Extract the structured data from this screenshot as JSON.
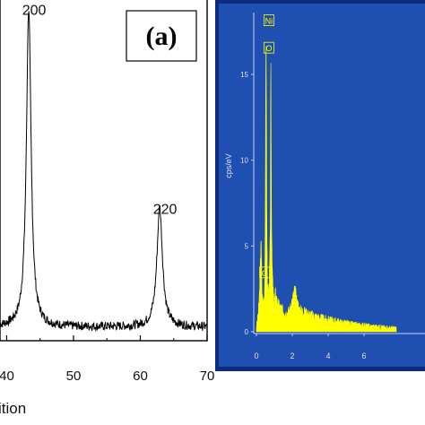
{
  "chart_data": [
    {
      "type": "line",
      "panel_label": "(a)",
      "xlabel": "ition",
      "ylabel": "",
      "xlim": [
        39,
        70
      ],
      "ylim": [
        0,
        100
      ],
      "x_ticks": [
        {
          "value": 50,
          "label": "50"
        },
        {
          "value": 60,
          "label": "60"
        },
        {
          "value": 70,
          "label": "70"
        }
      ],
      "x_tick_partial": {
        "value": 40,
        "label": "40"
      },
      "peaks": [
        {
          "x": 43.3,
          "label": "200",
          "height": 93
        },
        {
          "x": 62.9,
          "label": "220",
          "height": 35
        }
      ],
      "baseline": 4,
      "grid": false,
      "legend": "none"
    },
    {
      "type": "area",
      "ylabel": "cps/eV",
      "xlim": [
        -0.3,
        7.8
      ],
      "ylim": [
        -0.6,
        18.5
      ],
      "x_ticks": [
        {
          "value": 0,
          "label": "0"
        },
        {
          "value": 2,
          "label": "2"
        },
        {
          "value": 4,
          "label": "4"
        },
        {
          "value": 6,
          "label": "6"
        }
      ],
      "y_ticks": [
        {
          "value": 0,
          "label": "0"
        },
        {
          "value": 5,
          "label": "5"
        },
        {
          "value": 10,
          "label": "10"
        },
        {
          "value": 15,
          "label": "15"
        }
      ],
      "element_labels": [
        {
          "x": 0.52,
          "y": 18.0,
          "label": "Ni"
        },
        {
          "x": 0.52,
          "y": 16.4,
          "label": "O"
        },
        {
          "x": 0.28,
          "y": 3.3,
          "label": "C"
        }
      ],
      "spectrum": [
        [
          0.0,
          0.3
        ],
        [
          0.05,
          0.6
        ],
        [
          0.1,
          1.0
        ],
        [
          0.15,
          1.8
        ],
        [
          0.2,
          3.0
        ],
        [
          0.25,
          5.6
        ],
        [
          0.28,
          4.0
        ],
        [
          0.32,
          2.0
        ],
        [
          0.38,
          1.7
        ],
        [
          0.45,
          2.3
        ],
        [
          0.49,
          5.0
        ],
        [
          0.51,
          12.0
        ],
        [
          0.53,
          17.2
        ],
        [
          0.55,
          15.2
        ],
        [
          0.58,
          6.0
        ],
        [
          0.62,
          2.4
        ],
        [
          0.68,
          2.0
        ],
        [
          0.72,
          2.8
        ],
        [
          0.75,
          4.2
        ],
        [
          0.78,
          7.5
        ],
        [
          0.8,
          17.3
        ],
        [
          0.83,
          9.0
        ],
        [
          0.86,
          4.5
        ],
        [
          0.9,
          3.0
        ],
        [
          0.95,
          2.0
        ],
        [
          1.0,
          1.6
        ],
        [
          1.05,
          2.2
        ],
        [
          1.1,
          2.0
        ],
        [
          1.2,
          1.6
        ],
        [
          1.35,
          1.4
        ],
        [
          1.5,
          1.2
        ],
        [
          1.7,
          1.1
        ],
        [
          1.9,
          1.3
        ],
        [
          2.05,
          2.0
        ],
        [
          2.15,
          2.3
        ],
        [
          2.25,
          1.8
        ],
        [
          2.4,
          1.3
        ],
        [
          2.6,
          1.2
        ],
        [
          2.8,
          1.1
        ],
        [
          3.0,
          1.0
        ],
        [
          3.3,
          0.9
        ],
        [
          3.6,
          0.8
        ],
        [
          4.0,
          0.7
        ],
        [
          4.5,
          0.6
        ],
        [
          5.0,
          0.5
        ],
        [
          5.5,
          0.4
        ],
        [
          6.0,
          0.35
        ],
        [
          6.5,
          0.3
        ],
        [
          7.0,
          0.25
        ],
        [
          7.5,
          0.2
        ],
        [
          7.8,
          0.2
        ]
      ],
      "colors": {
        "background": "#1f4fb0",
        "spectrum": "#ffff00",
        "axis": "#c8d2ea",
        "frame": "#0c2a80"
      }
    }
  ]
}
